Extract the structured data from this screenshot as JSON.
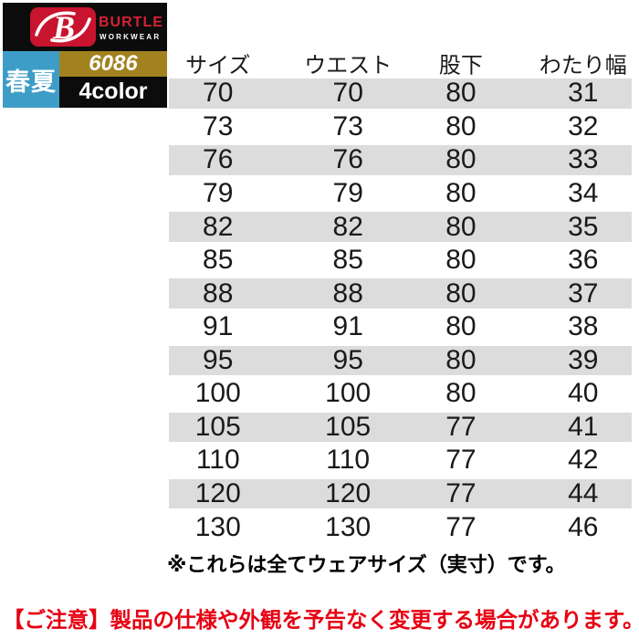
{
  "brand": {
    "name": "BURTLE",
    "sub_name": "WORKWEAR",
    "monogram": "B",
    "season_label": "春夏",
    "product_code": "6086",
    "color_count_label": "4color",
    "colors": {
      "badge_red": "#c8142e",
      "brand_text_red": "#d42233",
      "season_blue": "#3e9dc6",
      "code_gold": "#a1821f",
      "panel_black": "#0c0c0c"
    }
  },
  "table": {
    "headers": [
      "サイズ",
      "ウエスト",
      "股下",
      "わたり幅"
    ],
    "rows": [
      [
        "70",
        "70",
        "80",
        "31"
      ],
      [
        "73",
        "73",
        "80",
        "32"
      ],
      [
        "76",
        "76",
        "80",
        "33"
      ],
      [
        "79",
        "79",
        "80",
        "34"
      ],
      [
        "82",
        "82",
        "80",
        "35"
      ],
      [
        "85",
        "85",
        "80",
        "36"
      ],
      [
        "88",
        "88",
        "80",
        "37"
      ],
      [
        "91",
        "91",
        "80",
        "38"
      ],
      [
        "95",
        "95",
        "80",
        "39"
      ],
      [
        "100",
        "100",
        "80",
        "40"
      ],
      [
        "105",
        "105",
        "77",
        "41"
      ],
      [
        "110",
        "110",
        "77",
        "42"
      ],
      [
        "120",
        "120",
        "77",
        "44"
      ],
      [
        "130",
        "130",
        "77",
        "46"
      ]
    ],
    "stripe_color": "#dcdcdc",
    "footnote": "※これらは全てウェアサイズ（実寸）です。"
  },
  "notice": {
    "text": "【ご注意】製品の仕様や外観を予告なく変更する場合があります。",
    "color": "#e60012"
  }
}
